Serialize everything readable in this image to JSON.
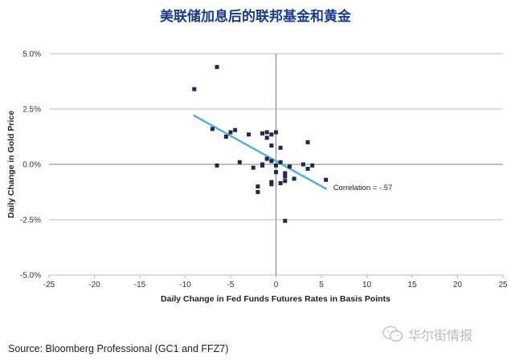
{
  "title": "美联储加息后的联邦基金和黄金",
  "source": "Source: Bloomberg Professional (GC1 and FFZ7)",
  "watermark": "华尔街情报",
  "colors": {
    "title": "#1a3a8a",
    "points": "#1f2a4a",
    "trendline": "#5bb0d8",
    "grid": "#bdbdbd",
    "zero_axis": "#808080"
  },
  "chart_data": {
    "type": "scatter",
    "title": "美联储加息后的联邦基金和黄金",
    "xlabel": "Daily Change in Fed Funds Futures Rates in Basis Points",
    "ylabel": "Daily Change in Gold Price",
    "xlim": [
      -25,
      25
    ],
    "ylim": [
      -5,
      5
    ],
    "x_ticks": [
      -25,
      -20,
      -15,
      -10,
      -5,
      0,
      5,
      10,
      15,
      20,
      25
    ],
    "y_ticks": [
      -5,
      -2.5,
      0,
      2.5,
      5
    ],
    "x_tick_labels": [
      "-25",
      "-20",
      "-15",
      "-10",
      "-5",
      "0",
      "5",
      "10",
      "15",
      "20",
      "25"
    ],
    "y_tick_labels": [
      "-5.0%",
      "-2.5%",
      "0.0%",
      "2.5%",
      "5.0%"
    ],
    "grid": "horizontal",
    "points": [
      {
        "x": -9.0,
        "y": 3.4
      },
      {
        "x": -6.5,
        "y": 4.4
      },
      {
        "x": -7.0,
        "y": 1.6
      },
      {
        "x": -6.5,
        "y": -0.05
      },
      {
        "x": -5.5,
        "y": 1.25
      },
      {
        "x": -5.0,
        "y": 1.45
      },
      {
        "x": -4.5,
        "y": 1.55
      },
      {
        "x": -4.0,
        "y": 0.1
      },
      {
        "x": -3.0,
        "y": 1.35
      },
      {
        "x": -2.5,
        "y": -0.15
      },
      {
        "x": -2.0,
        "y": -1.0
      },
      {
        "x": -2.0,
        "y": -1.25
      },
      {
        "x": -1.5,
        "y": 1.4
      },
      {
        "x": -1.5,
        "y": -0.05
      },
      {
        "x": -1.5,
        "y": 0.0
      },
      {
        "x": -1.0,
        "y": 1.45
      },
      {
        "x": -1.0,
        "y": 1.2
      },
      {
        "x": -1.0,
        "y": 0.25
      },
      {
        "x": -0.5,
        "y": 1.35
      },
      {
        "x": -0.5,
        "y": 0.85
      },
      {
        "x": -0.5,
        "y": 0.15
      },
      {
        "x": -0.5,
        "y": -0.8
      },
      {
        "x": -0.5,
        "y": -0.9
      },
      {
        "x": 0.0,
        "y": 1.45
      },
      {
        "x": 0.0,
        "y": -0.05
      },
      {
        "x": 0.0,
        "y": -0.35
      },
      {
        "x": 0.5,
        "y": 0.75
      },
      {
        "x": 0.5,
        "y": 0.1
      },
      {
        "x": 0.5,
        "y": -0.85
      },
      {
        "x": 1.0,
        "y": -0.4
      },
      {
        "x": 1.0,
        "y": -0.55
      },
      {
        "x": 1.0,
        "y": -0.75
      },
      {
        "x": 1.0,
        "y": -2.55
      },
      {
        "x": 1.5,
        "y": -0.1
      },
      {
        "x": 2.0,
        "y": -0.65
      },
      {
        "x": 3.0,
        "y": 0.0
      },
      {
        "x": 3.5,
        "y": 1.0
      },
      {
        "x": 3.5,
        "y": -0.2
      },
      {
        "x": 4.0,
        "y": -0.05
      },
      {
        "x": 5.5,
        "y": -0.7
      }
    ],
    "trendline": {
      "x": [
        -9,
        5.5
      ],
      "y": [
        2.2,
        -1.1
      ]
    },
    "annotations": [
      {
        "text": "Correlation = -.57",
        "x": 6.3,
        "y": -1.05
      }
    ]
  }
}
